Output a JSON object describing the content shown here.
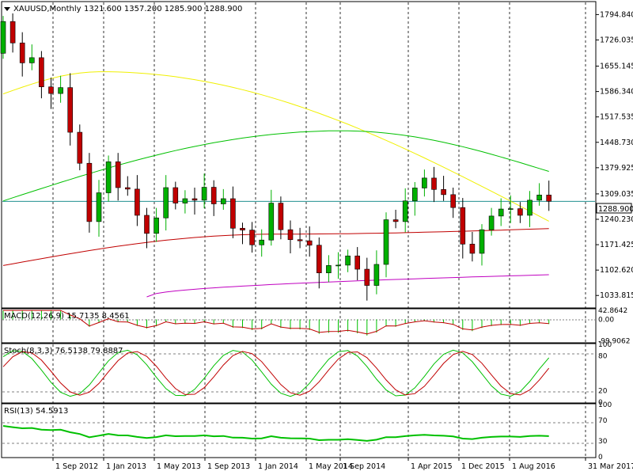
{
  "colors": {
    "background": "#ffffff",
    "up_candle": "#00b000",
    "down_candle": "#c00000",
    "ma_fast": "#f0f000",
    "ma_mid": "#00c000",
    "ma_slow": "#c00000",
    "ma_long": "#c000c0",
    "macd_hist": "#00c000",
    "macd_signal": "#c00000",
    "stoch_main": "#00c000",
    "stoch_signal": "#c00000",
    "rsi": "#00c000",
    "grid": "#000000"
  },
  "header": {
    "symbol": "XAUUSD,Monthly",
    "ohlc": "1321.600 1357.200 1285.900 1288.900"
  },
  "price_label": "1288.900",
  "chart_data": [
    {
      "type": "candlestick",
      "ylim": [
        1000,
        1830
      ],
      "y_ticks": [
        "1794.840",
        "1726.035",
        "1655.145",
        "1586.340",
        "1517.535",
        "1448.730",
        "1379.925",
        "1309.035",
        "1240.230",
        "1171.425",
        "1102.620",
        "1033.815"
      ],
      "y_tick_values": [
        1794.84,
        1726.035,
        1655.145,
        1586.34,
        1517.535,
        1448.73,
        1379.925,
        1309.035,
        1240.23,
        1171.425,
        1102.62,
        1033.815
      ],
      "x_ticks": [
        "1 Sep 2012",
        "1 Jan 2013",
        "1 May 2013",
        "1 Sep 2013",
        "1 Jan 2014",
        "1 May 2014",
        "1 Sep 2014",
        "1 Apr 2015",
        "1 Dec 2015",
        "1 Aug 2016",
        "31 Mar 2017"
      ],
      "x_tick_index": [
        0,
        4,
        8,
        12,
        16,
        20,
        24,
        31,
        39,
        47,
        54
      ],
      "last_price": 1288.9,
      "closes": [
        1776,
        1718,
        1664,
        1678,
        1599,
        1581,
        1597,
        1476,
        1392,
        1234,
        1312,
        1396,
        1326,
        1322,
        1251,
        1202,
        1244,
        1326,
        1284,
        1296,
        1292,
        1327,
        1282,
        1296,
        1216,
        1211,
        1171,
        1184,
        1284,
        1212,
        1185,
        1182,
        1170,
        1095,
        1115,
        1116,
        1141,
        1105,
        1061,
        1118,
        1239,
        1234,
        1290,
        1325,
        1352,
        1321,
        1307,
        1272,
        1173,
        1148,
        1212,
        1249,
        1268,
        1269,
        1251,
        1292,
        1306,
        1289
      ],
      "ma_fast_label": "",
      "ma_values": {
        "fast_start": 1580,
        "fast_peak": 1640,
        "fast_end": 1235,
        "mid_start": 1290,
        "mid_peak": 1480,
        "mid_end": 1370,
        "slow_start": 1115,
        "slow_end": 1215,
        "long_start": 1030,
        "long_end": 1090
      }
    },
    {
      "type": "bar",
      "title": "MACD(12,26,9) 15.7135 8.4561",
      "y_ticks": [
        "42.8642",
        "0.00",
        "-99.9062"
      ],
      "y_tick_values": [
        42.8642,
        0,
        -99.9062
      ],
      "ylim": [
        -110,
        50
      ]
    },
    {
      "type": "line",
      "title": "Stoch(8,3,3) 76.5138 79.8887",
      "y_ticks": [
        "100",
        "80",
        "20",
        "0"
      ],
      "y_tick_values": [
        100,
        80,
        20,
        0
      ],
      "ylim": [
        0,
        100
      ]
    },
    {
      "type": "line",
      "title": "RSI(13) 54.5913",
      "y_ticks": [
        "100",
        "70",
        "30",
        "0"
      ],
      "y_tick_values": [
        100,
        70,
        30,
        0
      ],
      "ylim": [
        0,
        100
      ]
    }
  ]
}
